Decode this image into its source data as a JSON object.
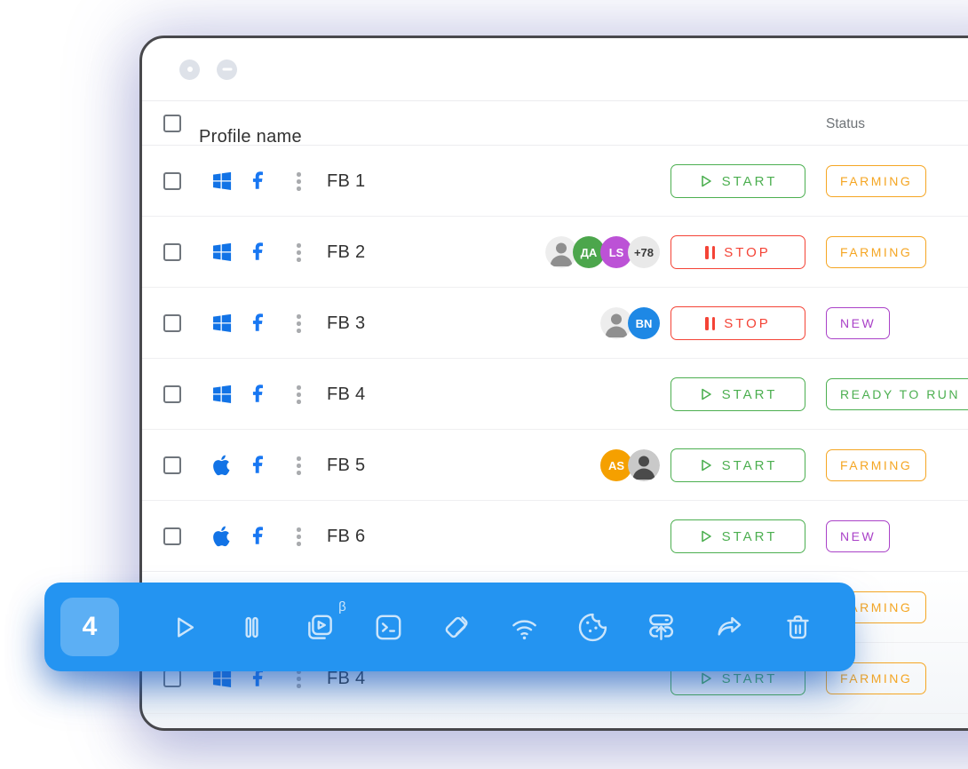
{
  "window": {
    "controls": [
      {
        "name": "dot"
      },
      {
        "name": "minimize"
      }
    ]
  },
  "table": {
    "headers": {
      "profile_name": "Profile name",
      "status": "Status"
    },
    "action_labels": {
      "start": "START",
      "stop": "STOP"
    },
    "rows": [
      {
        "name": "FB 1",
        "platform": "windows",
        "avatars": [],
        "action": "start",
        "status": {
          "label": "FARMING",
          "color": "#F5A623"
        }
      },
      {
        "name": "FB 2",
        "platform": "windows",
        "avatars": [
          {
            "type": "photo",
            "tone": "light"
          },
          {
            "type": "initials",
            "text": "ДА",
            "bg": "#4CA64C"
          },
          {
            "type": "initials",
            "text": "LS",
            "bg": "#BC52D6"
          },
          {
            "type": "count",
            "text": "+78",
            "bg": "#E9E9E9"
          }
        ],
        "action": "stop",
        "status": {
          "label": "FARMING",
          "color": "#F5A623"
        }
      },
      {
        "name": "FB 3",
        "platform": "windows",
        "avatars": [
          {
            "type": "photo",
            "tone": "light"
          },
          {
            "type": "initials",
            "text": "BN",
            "bg": "#1E88E5"
          }
        ],
        "action": "stop",
        "status": {
          "label": "NEW",
          "color": "#AA42C8"
        }
      },
      {
        "name": "FB 4",
        "platform": "windows",
        "avatars": [],
        "action": "start",
        "status": {
          "label": "READY TO RUN",
          "color": "#4CAF50"
        }
      },
      {
        "name": "FB 5",
        "platform": "apple",
        "avatars": [
          {
            "type": "initials",
            "text": "AS",
            "bg": "#F5A000"
          },
          {
            "type": "photo",
            "tone": "dark"
          }
        ],
        "action": "start",
        "status": {
          "label": "FARMING",
          "color": "#F5A623"
        }
      },
      {
        "name": "FB 6",
        "platform": "apple",
        "avatars": [],
        "action": "start",
        "status": {
          "label": "NEW",
          "color": "#AA42C8"
        }
      },
      {
        "name": "",
        "platform": "windows",
        "avatars": [],
        "action": "start",
        "status": {
          "label": "FARMING",
          "color": "#F5A623"
        }
      },
      {
        "name": "FB 4",
        "platform": "windows",
        "avatars": [],
        "action": "start",
        "status": {
          "label": "FARMING",
          "color": "#F5A623"
        }
      },
      {
        "name": "",
        "platform": "apple",
        "avatars": [
          {
            "type": "photo",
            "tone": "light"
          },
          {
            "type": "initials",
            "text": "",
            "bg": "#4CA64C"
          },
          {
            "type": "initials",
            "text": "",
            "bg": "#1E88E5"
          }
        ],
        "action": "stop",
        "status": {
          "label": "",
          "color": "#4CAF50"
        }
      }
    ]
  },
  "toolbar": {
    "count": "4",
    "icons": [
      {
        "name": "play"
      },
      {
        "name": "pause"
      },
      {
        "name": "bulk-launch",
        "badge": "β"
      },
      {
        "name": "console"
      },
      {
        "name": "tags"
      },
      {
        "name": "wifi-proxy"
      },
      {
        "name": "cookies"
      },
      {
        "name": "proxy-import"
      },
      {
        "name": "share"
      },
      {
        "name": "delete"
      }
    ]
  },
  "colors": {
    "toolbar_blue": "#2494F1",
    "start_green": "#4CAF50",
    "stop_red": "#F44336",
    "farming_orange": "#F5A623",
    "new_purple": "#AA42C8",
    "platform_blue": "#1273E6",
    "facebook_blue": "#1877F2"
  }
}
